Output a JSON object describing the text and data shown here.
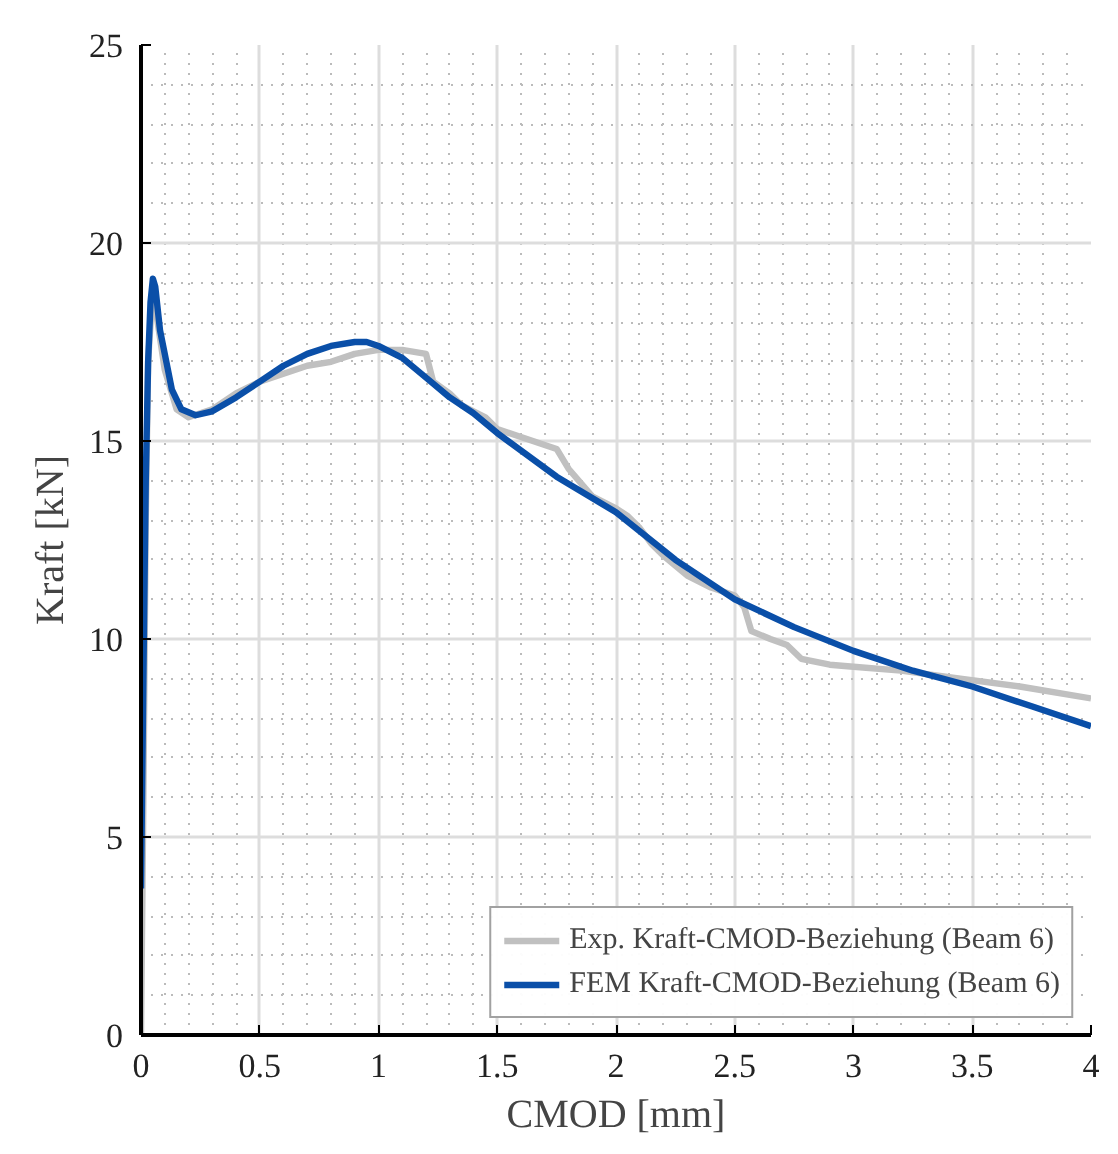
{
  "chart_data": {
    "type": "line",
    "xlabel": "CMOD [mm]",
    "ylabel": "Kraft [kN]",
    "xlim": [
      0,
      4
    ],
    "ylim": [
      0,
      25
    ],
    "xticks": [
      0,
      0.5,
      1,
      1.5,
      2,
      2.5,
      3,
      3.5,
      4
    ],
    "yticks": [
      0,
      5,
      10,
      15,
      20,
      25
    ],
    "grid": true,
    "legend": "bottom right",
    "line_style": "solid",
    "marker": "none",
    "series": [
      {
        "name": "Exp. Kraft-CMOD-Beziehung (Beam 6)",
        "color": "#c0c0c0",
        "x": [
          0,
          0.01,
          0.02,
          0.03,
          0.05,
          0.07,
          0.1,
          0.15,
          0.2,
          0.3,
          0.4,
          0.5,
          0.6,
          0.7,
          0.8,
          0.9,
          1.0,
          1.1,
          1.2,
          1.23,
          1.3,
          1.35,
          1.45,
          1.5,
          1.6,
          1.7,
          1.75,
          1.8,
          1.9,
          2.0,
          2.05,
          2.1,
          2.15,
          2.2,
          2.3,
          2.4,
          2.5,
          2.54,
          2.57,
          2.65,
          2.72,
          2.78,
          2.9,
          3.0,
          3.2,
          3.45,
          3.7,
          4.0
        ],
        "values": [
          0,
          6,
          13,
          17,
          18.9,
          18.0,
          16.8,
          15.8,
          15.6,
          15.8,
          16.2,
          16.5,
          16.7,
          16.9,
          17.0,
          17.2,
          17.3,
          17.3,
          17.2,
          16.5,
          16.2,
          15.9,
          15.6,
          15.3,
          15.1,
          14.9,
          14.8,
          14.3,
          13.6,
          13.3,
          13.1,
          12.8,
          12.4,
          12.1,
          11.6,
          11.3,
          11.1,
          10.8,
          10.2,
          10.0,
          9.85,
          9.5,
          9.35,
          9.3,
          9.2,
          9.0,
          8.8,
          8.5
        ]
      },
      {
        "name": "FEM Kraft-CMOD-Beziehung (Beam 6)",
        "color": "#0a4fa8",
        "x": [
          0,
          0.01,
          0.02,
          0.03,
          0.04,
          0.05,
          0.06,
          0.08,
          0.1,
          0.13,
          0.17,
          0.23,
          0.3,
          0.4,
          0.5,
          0.6,
          0.7,
          0.8,
          0.9,
          0.95,
          1.0,
          1.1,
          1.2,
          1.3,
          1.4,
          1.5,
          1.75,
          2.0,
          2.25,
          2.5,
          2.75,
          3.0,
          3.25,
          3.5,
          3.75,
          4.0
        ],
        "values": [
          3.7,
          9,
          14,
          17,
          18.5,
          19.1,
          18.9,
          17.8,
          17.2,
          16.3,
          15.8,
          15.65,
          15.75,
          16.1,
          16.5,
          16.9,
          17.2,
          17.4,
          17.5,
          17.5,
          17.4,
          17.1,
          16.6,
          16.1,
          15.7,
          15.2,
          14.1,
          13.2,
          12.0,
          11.0,
          10.3,
          9.7,
          9.2,
          8.8,
          8.3,
          7.8
        ]
      }
    ]
  }
}
